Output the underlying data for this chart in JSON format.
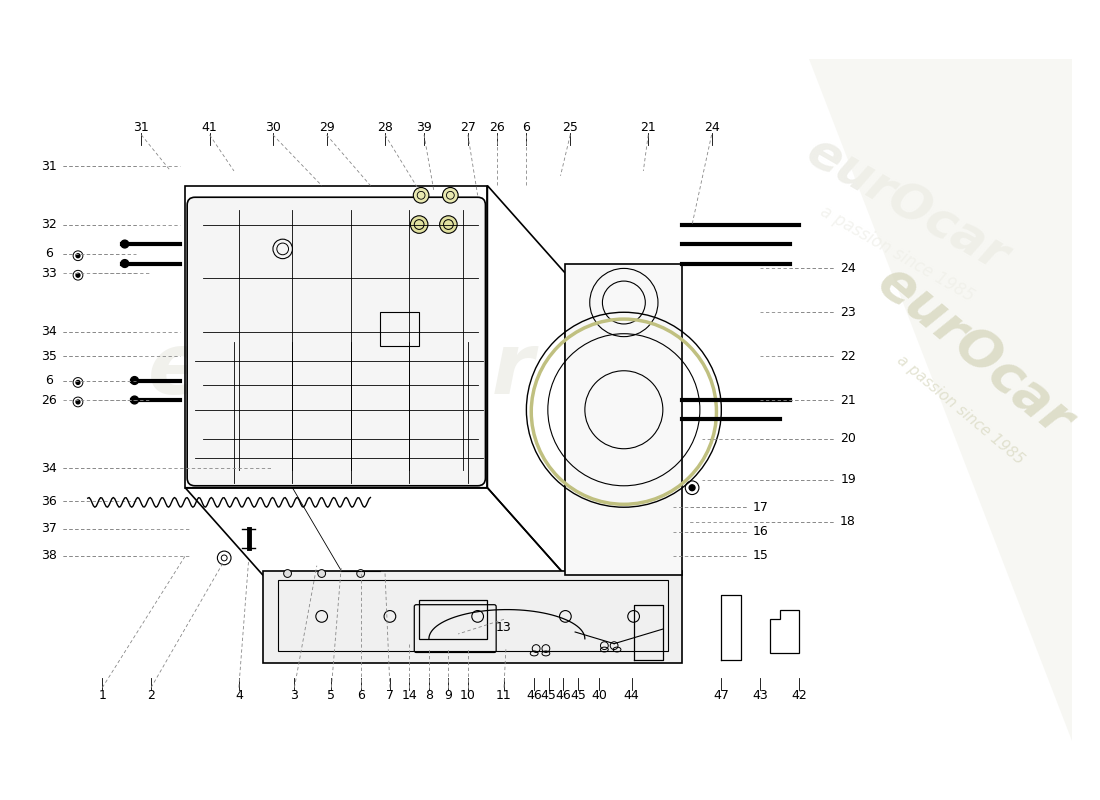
{
  "title": "",
  "background_color": "#ffffff",
  "watermark_text1": "eurOcar",
  "watermark_text2": "a passion since 1985",
  "logo_color": "#e8e8e0",
  "part_numbers_top": [
    1,
    2,
    4,
    3,
    5,
    6,
    7,
    14,
    8,
    9,
    10,
    11,
    46,
    45,
    46,
    45,
    40,
    44,
    47,
    43,
    42
  ],
  "part_numbers_left": [
    38,
    37,
    36,
    34,
    26,
    6,
    35,
    34,
    33,
    6,
    32,
    31
  ],
  "part_numbers_bottom": [
    41,
    30,
    29,
    28,
    39,
    27,
    26,
    6,
    25,
    21,
    24
  ],
  "part_numbers_right": [
    18,
    19,
    20,
    21,
    22,
    23,
    24,
    15,
    16,
    17
  ],
  "line_color": "#000000",
  "dashed_line_color": "#aaaaaa",
  "annotation_color": "#000000",
  "font_size": 9
}
